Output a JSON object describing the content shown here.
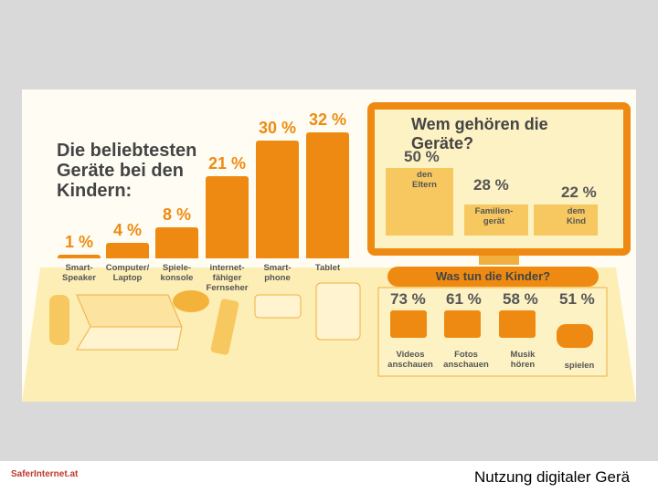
{
  "chart_data": {
    "type": "bar",
    "title": "Die beliebtesten Geräte bei den Kindern:",
    "categories": [
      "Smart-\nSpeaker",
      "Computer/\nLaptop",
      "Spiele-\nkonsole",
      "internet-\nfähiger\nFernseher",
      "Smart-\nphone",
      "Tablet"
    ],
    "values": [
      1,
      4,
      8,
      21,
      30,
      32
    ],
    "value_labels": [
      "1 %",
      "4 %",
      "8 %",
      "21 %",
      "30 %",
      "32 %"
    ],
    "color": "#ee8a12"
  },
  "ownership": {
    "title": "Wem gehören die\nGeräte?",
    "items": [
      {
        "percent": "50 %",
        "text": "den\nEltern"
      },
      {
        "percent": "28 %",
        "text": "Familien-\ngerät"
      },
      {
        "percent": "22 %",
        "text": "dem\nKind"
      }
    ]
  },
  "activities": {
    "title": "Was tun die Kinder?",
    "items": [
      {
        "percent": "73 %",
        "text": "Videos\nanschauen"
      },
      {
        "percent": "61 %",
        "text": "Fotos\nanschauen"
      },
      {
        "percent": "58 %",
        "text": "Musik\nhören"
      },
      {
        "percent": "51 %",
        "text": "spielen"
      }
    ]
  },
  "footer": {
    "logo": "SaferInternet.at",
    "caption": "Nutzung digitaler Gerä"
  }
}
